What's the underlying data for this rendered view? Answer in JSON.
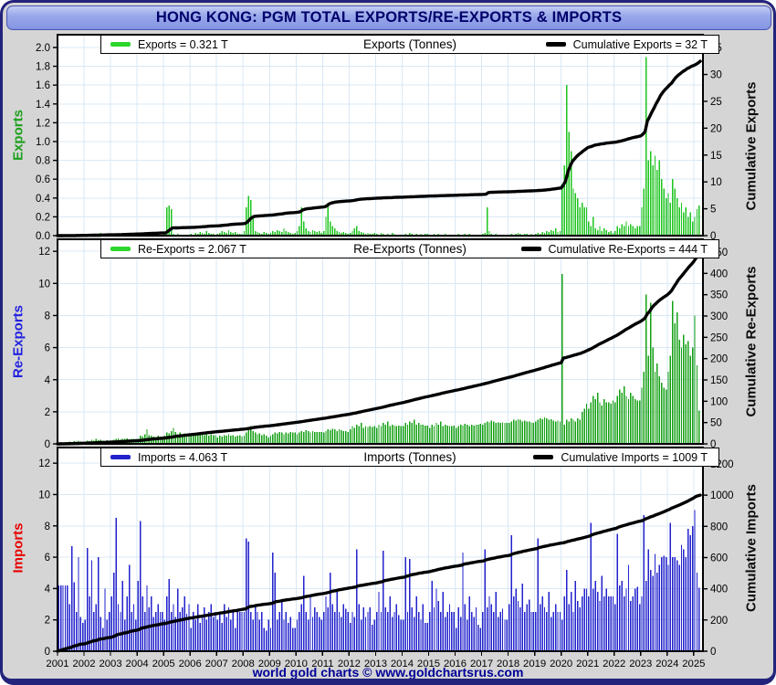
{
  "window": {
    "title": "HONG KONG: PGM TOTAL EXPORTS/RE-EXPORTS & IMPORTS",
    "footer": "world gold charts © www.goldchartsrus.com"
  },
  "theme": {
    "grid_color": "#d9e8f5",
    "panel_bg": "#ffffff",
    "page_bg": "#d5d5d5",
    "frame_color": "#23237c",
    "header_text_color": "#00006b",
    "footer_text_color": "#000099",
    "line_color": "#000000"
  },
  "x_axis": {
    "years": [
      "2001",
      "2002",
      "2003",
      "2004",
      "2005",
      "2006",
      "2007",
      "2008",
      "2009",
      "2010",
      "2011",
      "2012",
      "2013",
      "2014",
      "2015",
      "2016",
      "2017",
      "2018",
      "2019",
      "2020",
      "2021",
      "2022",
      "2023",
      "2024",
      "2025"
    ],
    "x_min": 2001,
    "x_max": 2025.35
  },
  "chart_data": [
    {
      "type": "bar",
      "panel": "exports",
      "title": "Exports (Tonnes)",
      "interval": "monthly",
      "x_start_year": 2001,
      "legend": {
        "bar_label": "Exports = 0.321 T",
        "line_label": "Cumulative Exports = 32 T"
      },
      "latest_value": 0.321,
      "cumulative_total": 32,
      "bar_color": "#1ec41e",
      "left_axis": {
        "title": "Exports",
        "color": "#1ca01c",
        "ticks": [
          "2.0",
          "1.8",
          "1.6",
          "1.4",
          "1.2",
          "1.0",
          "0.8",
          "0.6",
          "0.4",
          "0.2",
          "0.0"
        ],
        "plot_max": 2.136
      },
      "right_axis": {
        "title": "Cumulative Exports",
        "ticks": [
          "35",
          "30",
          "25",
          "20",
          "15",
          "10",
          "5",
          "0"
        ],
        "plot_max": 37.4
      },
      "bars_by_year": [
        [
          0,
          0,
          0.01,
          0,
          0,
          0.01,
          0,
          0,
          0.02,
          0,
          0.01,
          0
        ],
        [
          0,
          0.01,
          0,
          0.02,
          0,
          0.01,
          0,
          0.03,
          0,
          0.01,
          0.02,
          0
        ],
        [
          0.01,
          0,
          0.02,
          0.01,
          0,
          0.03,
          0,
          0.02,
          0.01,
          0.02,
          0.02,
          0.01
        ],
        [
          0.01,
          0.02,
          0.01,
          0.03,
          0.02,
          0.01,
          0.02,
          0.03,
          0.01,
          0.02,
          0.01,
          0.01
        ],
        [
          0.02,
          0.3,
          0.32,
          0.28,
          0.02,
          0.01,
          0.02,
          0.01,
          0.01,
          0.01,
          0.01,
          0.01
        ],
        [
          0.02,
          0.01,
          0.03,
          0.02,
          0.04,
          0.03,
          0.02,
          0.05,
          0.03,
          0.02,
          0.02,
          0.01
        ],
        [
          0.02,
          0.03,
          0.05,
          0.04,
          0.03,
          0.06,
          0.04,
          0.03,
          0.04,
          0.02,
          0.02,
          0.02
        ],
        [
          0.05,
          0.3,
          0.42,
          0.38,
          0.2,
          0.05,
          0.04,
          0.03,
          0.02,
          0.04,
          0.03,
          0.02
        ],
        [
          0.03,
          0.05,
          0.04,
          0.06,
          0.05,
          0.04,
          0.08,
          0.05,
          0.04,
          0.03,
          0.02,
          0.03
        ],
        [
          0.05,
          0.1,
          0.3,
          0.15,
          0.08,
          0.05,
          0.04,
          0.06,
          0.05,
          0.04,
          0.05,
          0.03
        ],
        [
          0.05,
          0.2,
          0.35,
          0.15,
          0.1,
          0.08,
          0.05,
          0.04,
          0.03,
          0.04,
          0.03,
          0.02
        ],
        [
          0.03,
          0.05,
          0.08,
          0.1,
          0.05,
          0.04,
          0.03,
          0.02,
          0.03,
          0.02,
          0.02,
          0.03
        ],
        [
          0.02,
          0.01,
          0.03,
          0.02,
          0.01,
          0.02,
          0.01,
          0.03,
          0.02,
          0.01,
          0.01,
          0.01
        ],
        [
          0.01,
          0.02,
          0.01,
          0.03,
          0.02,
          0.01,
          0.02,
          0.01,
          0.02,
          0.01,
          0.02,
          0.02
        ],
        [
          0.01,
          0.01,
          0.02,
          0.01,
          0.02,
          0.01,
          0.01,
          0.02,
          0.01,
          0.01,
          0.01,
          0.01
        ],
        [
          0.01,
          0.02,
          0.01,
          0.01,
          0.02,
          0.01,
          0.02,
          0.01,
          0.01,
          0.01,
          0.01,
          0.01
        ],
        [
          0.02,
          0.03,
          0.3,
          0.05,
          0.02,
          0.01,
          0.02,
          0.01,
          0.01,
          0.01,
          0.01,
          0.01
        ],
        [
          0.01,
          0.02,
          0.01,
          0.02,
          0.03,
          0.02,
          0.01,
          0.02,
          0.02,
          0.01,
          0.02,
          0.01
        ],
        [
          0.02,
          0.03,
          0.02,
          0.04,
          0.03,
          0.05,
          0.04,
          0.06,
          0.05,
          0.08,
          0.04,
          0.05
        ],
        [
          0.55,
          0.75,
          1.6,
          1.1,
          0.9,
          0.5,
          0.45,
          0.4,
          0.3,
          0.35,
          0.3,
          0.3
        ],
        [
          0.15,
          0.1,
          0.2,
          0.08,
          0.06,
          0.1,
          0.05,
          0.08,
          0.06,
          0.04,
          0.05,
          0.03
        ],
        [
          0.05,
          0.1,
          0.08,
          0.12,
          0.1,
          0.15,
          0.1,
          0.12,
          0.1,
          0.08,
          0.1,
          0.1
        ],
        [
          0.3,
          0.5,
          1.9,
          0.8,
          0.9,
          0.75,
          0.85,
          0.7,
          0.8,
          0.6,
          0.5,
          0.4
        ],
        [
          0.45,
          0.35,
          0.6,
          0.5,
          0.4,
          0.3,
          0.35,
          0.25,
          0.3,
          0.2,
          0.25,
          0.15
        ],
        [
          0.2,
          0.28,
          0.321
        ]
      ]
    },
    {
      "type": "bar",
      "panel": "re-exports",
      "title": "Re-Exports (Tonnes)",
      "interval": "monthly",
      "x_start_year": 2001,
      "legend": {
        "bar_label": "Re-Exports = 2.067 T",
        "line_label": "Cumulative Re-Exports = 444 T"
      },
      "latest_value": 2.067,
      "cumulative_total": 444,
      "bar_color": "#14a014",
      "left_axis": {
        "title": "Re-Exports",
        "color": "#2121e0",
        "ticks": [
          "12",
          "10",
          "8",
          "6",
          "4",
          "2",
          "0"
        ],
        "plot_max": 12.75
      },
      "right_axis": {
        "title": "Cumulative Re-Exports",
        "ticks": [
          "450",
          "400",
          "350",
          "300",
          "250",
          "200",
          "150",
          "100",
          "50",
          "0"
        ],
        "plot_max": 480
      },
      "bars_by_year": [
        [
          0.05,
          0.1,
          0.08,
          0.12,
          0.1,
          0.15,
          0.12,
          0.18,
          0.15,
          0.2,
          0.15,
          0.1
        ],
        [
          0.15,
          0.2,
          0.18,
          0.25,
          0.2,
          0.3,
          0.22,
          0.25,
          0.2,
          0.18,
          0.22,
          0.15
        ],
        [
          0.2,
          0.25,
          0.3,
          0.35,
          0.28,
          0.32,
          0.3,
          0.35,
          0.28,
          0.32,
          0.3,
          0.25
        ],
        [
          0.3,
          0.5,
          0.45,
          0.6,
          0.9,
          0.55,
          0.5,
          0.45,
          0.4,
          0.5,
          0.45,
          0.4
        ],
        [
          0.5,
          0.7,
          0.65,
          0.8,
          1.0,
          0.75,
          0.6,
          0.7,
          0.55,
          0.65,
          0.6,
          0.5
        ],
        [
          0.5,
          0.6,
          0.55,
          0.7,
          0.65,
          0.6,
          0.55,
          0.65,
          0.5,
          0.6,
          0.55,
          0.55
        ],
        [
          0.4,
          0.5,
          0.45,
          0.55,
          0.5,
          0.6,
          0.5,
          0.55,
          0.45,
          0.5,
          0.55,
          0.45
        ],
        [
          0.5,
          0.7,
          0.9,
          1.1,
          0.8,
          0.7,
          0.6,
          0.65,
          0.55,
          0.6,
          0.5,
          0.4
        ],
        [
          0.5,
          0.6,
          0.7,
          0.65,
          0.75,
          0.7,
          0.6,
          0.7,
          0.65,
          0.75,
          0.7,
          0.7
        ],
        [
          0.6,
          0.7,
          0.8,
          0.75,
          0.85,
          0.8,
          0.7,
          0.8,
          0.75,
          0.75,
          0.75,
          0.75
        ],
        [
          0.7,
          0.8,
          0.9,
          0.85,
          0.95,
          0.9,
          0.8,
          0.9,
          0.85,
          0.8,
          0.8,
          0.75
        ],
        [
          0.9,
          1.1,
          1.0,
          1.2,
          1.1,
          1.3,
          1.0,
          1.1,
          1.05,
          1.1,
          1.05,
          1.1
        ],
        [
          1.0,
          1.2,
          1.1,
          1.3,
          1.2,
          1.4,
          1.1,
          1.2,
          1.15,
          1.1,
          1.15,
          1.1
        ],
        [
          1.1,
          1.3,
          1.2,
          1.4,
          1.3,
          1.5,
          1.2,
          1.3,
          1.2,
          1.2,
          1.15,
          1.15
        ],
        [
          1.0,
          1.2,
          1.1,
          1.3,
          1.2,
          1.4,
          1.1,
          1.2,
          1.15,
          1.1,
          1.1,
          1.15
        ],
        [
          1.0,
          1.1,
          1.2,
          1.15,
          1.25,
          1.2,
          1.1,
          1.2,
          1.15,
          1.2,
          1.2,
          1.25
        ],
        [
          1.2,
          1.3,
          1.4,
          1.35,
          1.45,
          1.4,
          1.3,
          1.35,
          1.3,
          1.35,
          1.3,
          1.3
        ],
        [
          1.3,
          1.4,
          1.5,
          1.45,
          1.55,
          1.5,
          1.4,
          1.45,
          1.4,
          1.4,
          1.35,
          1.3
        ],
        [
          1.4,
          1.5,
          1.6,
          1.55,
          1.65,
          1.6,
          1.5,
          1.55,
          1.45,
          1.4,
          1.45,
          1.4
        ],
        [
          10.6,
          1.2,
          1.5,
          1.4,
          1.6,
          1.5,
          1.4,
          1.6,
          1.5,
          2.0,
          2.2,
          2.5
        ],
        [
          2.2,
          2.6,
          3.0,
          2.8,
          3.2,
          2.6,
          2.4,
          2.8,
          2.6,
          2.6,
          2.5,
          2.7
        ],
        [
          2.6,
          3.0,
          3.4,
          3.2,
          3.6,
          3.0,
          2.8,
          3.2,
          3.0,
          2.8,
          2.7,
          2.7
        ],
        [
          3.5,
          4.5,
          9.3,
          5.5,
          8.8,
          6.0,
          4.5,
          5.0,
          4.2,
          3.8,
          3.5,
          3.4
        ],
        [
          4.5,
          5.5,
          8.9,
          7.5,
          8.2,
          6.5,
          6.0,
          6.8,
          6.2,
          6.4,
          5.5,
          6.0
        ],
        [
          8.0,
          4.9,
          2.067
        ]
      ]
    },
    {
      "type": "bar",
      "panel": "imports",
      "title": "Imports (Tonnes)",
      "interval": "monthly",
      "x_start_year": 2001,
      "legend": {
        "bar_label": "Imports = 4.063 T",
        "line_label": "Cumulative Imports = 1009 T"
      },
      "latest_value": 4.063,
      "cumulative_total": 1009,
      "bar_color": "#2222cc",
      "left_axis": {
        "title": "Imports",
        "color": "#e80000",
        "ticks": [
          "12",
          "10",
          "8",
          "6",
          "4",
          "2",
          "0"
        ],
        "plot_max": 13.0
      },
      "right_axis": {
        "title": "Cumulative Imports",
        "ticks": [
          "1200",
          "1000",
          "800",
          "600",
          "400",
          "200",
          "0"
        ],
        "plot_max": 1305
      },
      "bars_by_year": [
        [
          4.2,
          4.2,
          4.2,
          4.2,
          4.2,
          3.0,
          6.7,
          4.4,
          2.5,
          6.0,
          2.2,
          1.8
        ],
        [
          2.0,
          6.6,
          3.5,
          5.8,
          2.5,
          3.0,
          6.0,
          2.2,
          1.5,
          4.0,
          2.0,
          2.5
        ],
        [
          3.5,
          5.0,
          8.5,
          3.0,
          2.5,
          4.5,
          2.0,
          3.5,
          5.5,
          2.5,
          3.0,
          2.0
        ],
        [
          4.5,
          8.3,
          3.5,
          2.5,
          4.2,
          2.8,
          3.5,
          2.2,
          2.5,
          3.0,
          2.5,
          2.5
        ],
        [
          2.0,
          3.5,
          4.6,
          2.5,
          3.0,
          2.2,
          4.0,
          2.5,
          2.8,
          3.5,
          2.4,
          3.0
        ],
        [
          1.5,
          2.5,
          2.0,
          3.0,
          1.8,
          2.2,
          2.8,
          2.0,
          2.5,
          3.0,
          2.2,
          2.5
        ],
        [
          2.0,
          2.5,
          1.8,
          3.0,
          2.2,
          2.8,
          2.0,
          2.5,
          1.5,
          2.7,
          2.5,
          2.5
        ],
        [
          2.5,
          7.2,
          7.0,
          2.5,
          2.0,
          3.0,
          2.5,
          2.0,
          2.5,
          1.5,
          1.3,
          2.0
        ],
        [
          1.5,
          6.3,
          5.0,
          2.0,
          2.5,
          3.2,
          2.0,
          2.5,
          1.8,
          2.2,
          1.5,
          1.5
        ],
        [
          2.0,
          2.5,
          3.0,
          4.8,
          2.5,
          2.0,
          3.5,
          2.2,
          2.8,
          2.5,
          2.2,
          2.0
        ],
        [
          2.5,
          3.5,
          2.8,
          5.0,
          3.0,
          2.5,
          3.8,
          2.5,
          2.2,
          3.0,
          2.7,
          2.5
        ],
        [
          1.8,
          2.5,
          2.2,
          6.5,
          3.0,
          2.0,
          2.8,
          2.2,
          2.5,
          2.8,
          1.7,
          2.0
        ],
        [
          2.5,
          3.8,
          2.5,
          6.4,
          2.8,
          2.5,
          3.5,
          2.2,
          2.5,
          3.0,
          2.3,
          2.0
        ],
        [
          2.0,
          6.0,
          2.5,
          5.9,
          2.8,
          2.2,
          3.5,
          2.5,
          2.0,
          3.0,
          1.8,
          1.8
        ],
        [
          2.5,
          4.5,
          2.8,
          4.0,
          3.2,
          2.5,
          3.8,
          2.2,
          2.5,
          3.0,
          2.5,
          2.5
        ],
        [
          1.5,
          2.8,
          2.2,
          6.3,
          3.0,
          2.0,
          3.5,
          2.5,
          2.2,
          2.8,
          1.7,
          1.5
        ],
        [
          2.5,
          6.5,
          2.8,
          3.5,
          3.0,
          2.5,
          3.8,
          2.2,
          2.5,
          2.7,
          2.0,
          2.0
        ],
        [
          3.0,
          7.4,
          3.5,
          4.0,
          3.2,
          2.8,
          4.3,
          2.5,
          3.0,
          3.3,
          2.5,
          2.5
        ],
        [
          2.5,
          7.2,
          3.0,
          3.5,
          2.8,
          2.5,
          3.8,
          2.2,
          2.5,
          3.0,
          2.5,
          2.5
        ],
        [
          2.0,
          3.5,
          5.2,
          3.0,
          3.8,
          2.5,
          4.5,
          3.2,
          2.8,
          3.5,
          4.0,
          4.0
        ],
        [
          3.5,
          8.2,
          4.0,
          4.5,
          3.8,
          3.2,
          4.8,
          3.5,
          4.0,
          3.5,
          3.5,
          3.5
        ],
        [
          3.0,
          7.5,
          4.2,
          4.5,
          3.5,
          4.0,
          5.5,
          3.2,
          3.5,
          4.0,
          4.1,
          3.0
        ],
        [
          3.5,
          8.7,
          4.5,
          6.5,
          5.2,
          4.8,
          6.2,
          5.0,
          5.5,
          6.0,
          6.1,
          6.0
        ],
        [
          5.5,
          8.2,
          6.0,
          6.0,
          5.8,
          5.5,
          6.8,
          6.5,
          6.0,
          7.8,
          7.4,
          8.0
        ],
        [
          9.0,
          5.0,
          4.063
        ]
      ]
    }
  ]
}
